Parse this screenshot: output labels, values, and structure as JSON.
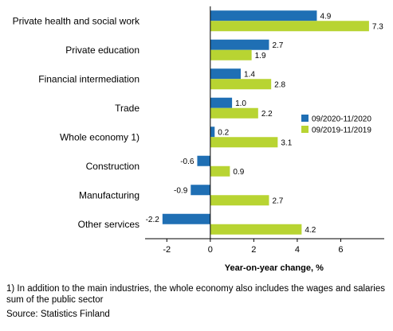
{
  "chart_data": {
    "type": "bar",
    "orientation": "horizontal",
    "categories": [
      "Private health and social work",
      "Private education",
      "Financial intermediation",
      "Trade",
      "Whole economy 1)",
      "Construction",
      "Manufacturing",
      "Other services"
    ],
    "series": [
      {
        "name": "09/2020-11/2020",
        "color": "#1f6fb4",
        "values": [
          4.9,
          2.7,
          1.4,
          1.0,
          0.2,
          -0.6,
          -0.9,
          -2.2
        ],
        "labels": [
          "4.9",
          "2.7",
          "1.4",
          "1.0",
          "0.2",
          "-0.6",
          "-0.9",
          "-2.2"
        ]
      },
      {
        "name": "09/2019-11/2019",
        "color": "#b8d432",
        "values": [
          7.3,
          1.9,
          2.8,
          2.2,
          3.1,
          0.9,
          2.7,
          4.2
        ],
        "labels": [
          "7.3",
          "1.9",
          "2.8",
          "2.2",
          "3.1",
          "0.9",
          "2.7",
          "4.2"
        ]
      }
    ],
    "xlim": [
      -3,
      8
    ],
    "xticks": [
      -2,
      0,
      2,
      4,
      6
    ],
    "xtick_labels": [
      "-2",
      "0",
      "2",
      "4",
      "6"
    ],
    "xlabel": "Year-on-year change, %",
    "legend": "right",
    "grid": false
  },
  "footnote": "1) In addition to the main industries, the whole economy also includes the wages and salaries sum of the public sector",
  "source": "Source: Statistics Finland"
}
